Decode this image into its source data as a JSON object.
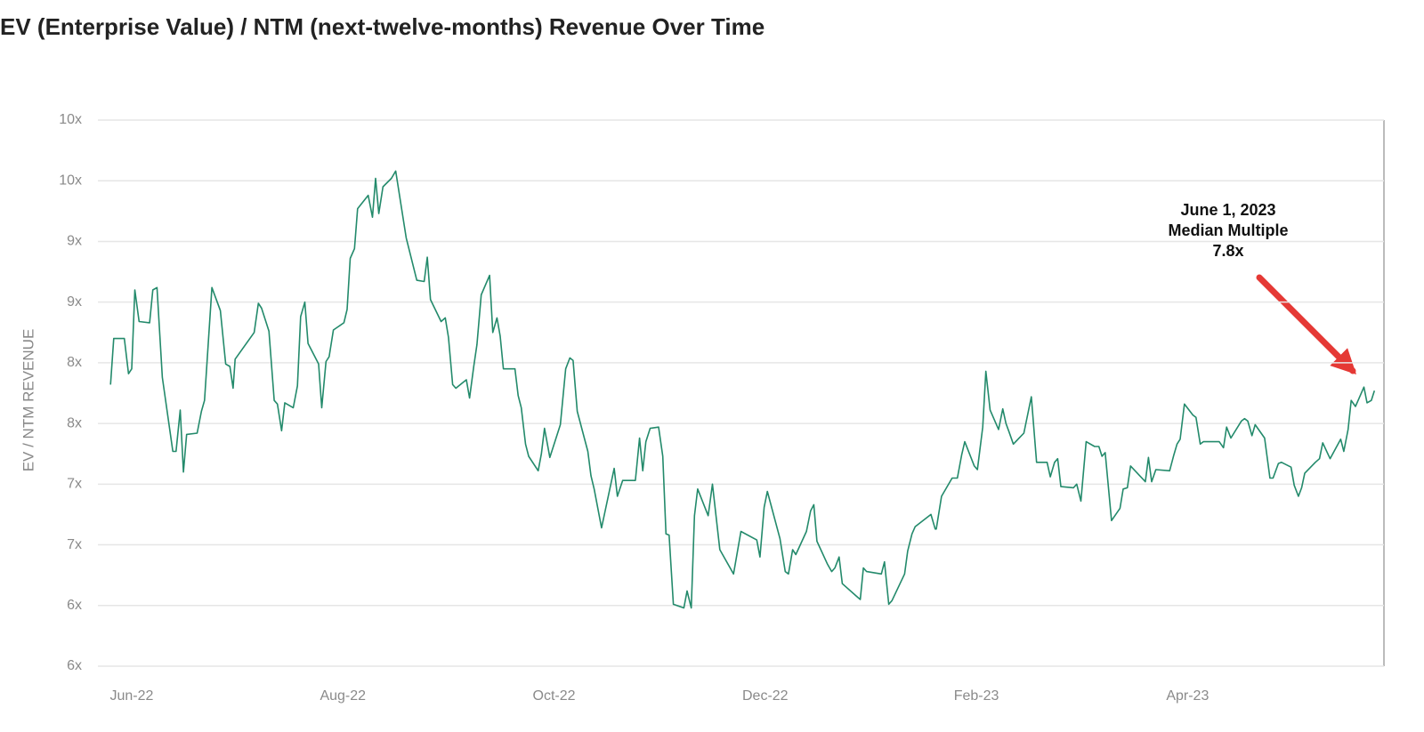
{
  "chart_data": {
    "type": "line",
    "title": "EV (Enterprise Value) / NTM (next-twelve-months) Revenue Over Time",
    "y_label": "EV / NTM REVENUE",
    "annotation": [
      "June 1, 2023",
      "Median Multiple",
      "7.8x"
    ],
    "color": "#238a6b",
    "grid": true,
    "xlim": [
      5.68,
      17.86
    ],
    "xticks": [
      {
        "value": 6,
        "label": "Jun-22"
      },
      {
        "value": 8,
        "label": "Aug-22"
      },
      {
        "value": 10,
        "label": "Oct-22"
      },
      {
        "value": 12,
        "label": "Dec-22"
      },
      {
        "value": 14,
        "label": "Feb-23"
      },
      {
        "value": 16,
        "label": "Apr-23"
      }
    ],
    "ylim": [
      5.5,
      10
    ],
    "yticks": [
      {
        "value": 5.5,
        "label": "6x"
      },
      {
        "value": 6,
        "label": "6x"
      },
      {
        "value": 6.5,
        "label": "7x"
      },
      {
        "value": 7,
        "label": "7x"
      },
      {
        "value": 7.5,
        "label": "8x"
      },
      {
        "value": 8,
        "label": "8x"
      },
      {
        "value": 8.5,
        "label": "9x"
      },
      {
        "value": 9,
        "label": "9x"
      },
      {
        "value": 9.5,
        "label": "10x"
      },
      {
        "value": 10,
        "label": "10x"
      }
    ],
    "x": [
      5.8,
      5.83,
      5.93,
      5.97,
      6.0,
      6.03,
      6.07,
      6.17,
      6.2,
      6.24,
      6.29,
      6.39,
      6.42,
      6.46,
      6.49,
      6.52,
      6.62,
      6.66,
      6.69,
      6.76,
      6.84,
      6.89,
      6.93,
      6.96,
      6.98,
      7.16,
      7.2,
      7.23,
      7.3,
      7.35,
      7.38,
      7.42,
      7.45,
      7.53,
      7.57,
      7.6,
      7.64,
      7.67,
      7.77,
      7.8,
      7.84,
      7.87,
      7.91,
      8.01,
      8.04,
      8.07,
      8.11,
      8.14,
      8.24,
      8.28,
      8.31,
      8.34,
      8.38,
      8.46,
      8.5,
      8.6,
      8.7,
      8.77,
      8.8,
      8.83,
      8.93,
      8.97,
      9.0,
      9.04,
      9.07,
      9.14,
      9.17,
      9.2,
      9.24,
      9.27,
      9.31,
      9.39,
      9.42,
      9.46,
      9.49,
      9.52,
      9.63,
      9.66,
      9.69,
      9.73,
      9.76,
      9.85,
      9.88,
      9.91,
      9.96,
      10.06,
      10.11,
      10.15,
      10.18,
      10.22,
      10.32,
      10.35,
      10.38,
      10.45,
      10.57,
      10.6,
      10.65,
      10.77,
      10.81,
      10.84,
      10.87,
      10.91,
      10.99,
      11.03,
      11.06,
      11.09,
      11.13,
      11.23,
      11.26,
      11.3,
      11.33,
      11.36,
      11.46,
      11.5,
      11.57,
      11.7,
      11.77,
      11.92,
      11.95,
      11.99,
      12.02,
      12.14,
      12.19,
      12.22,
      12.26,
      12.29,
      12.39,
      12.43,
      12.46,
      12.49,
      12.59,
      12.63,
      12.66,
      12.7,
      12.73,
      12.86,
      12.9,
      12.93,
      12.96,
      13.1,
      13.13,
      13.17,
      13.2,
      13.32,
      13.35,
      13.39,
      13.42,
      13.57,
      13.61,
      13.62,
      13.67,
      13.77,
      13.82,
      13.86,
      13.89,
      13.98,
      14.01,
      14.06,
      14.09,
      14.13,
      14.21,
      14.25,
      14.28,
      14.31,
      14.35,
      14.45,
      14.52,
      14.57,
      14.67,
      14.7,
      14.74,
      14.77,
      14.8,
      14.92,
      14.95,
      14.99,
      15.02,
      15.04,
      15.12,
      15.16,
      15.19,
      15.22,
      15.28,
      15.36,
      15.39,
      15.43,
      15.46,
      15.6,
      15.63,
      15.66,
      15.7,
      15.83,
      15.87,
      15.9,
      15.93,
      15.97,
      16.05,
      16.08,
      16.12,
      16.15,
      16.3,
      16.34,
      16.37,
      16.41,
      16.51,
      16.54,
      16.57,
      16.61,
      16.64,
      16.73,
      16.78,
      16.81,
      16.86,
      16.89,
      16.98,
      17.01,
      17.05,
      17.08,
      17.11,
      17.21,
      17.25,
      17.28,
      17.35,
      17.45,
      17.48,
      17.52,
      17.55,
      17.59,
      17.67,
      17.7,
      17.74,
      17.77
    ],
    "values": [
      7.82,
      8.2,
      8.2,
      7.91,
      7.95,
      8.6,
      8.34,
      8.33,
      8.6,
      8.62,
      7.88,
      7.27,
      7.27,
      7.61,
      7.1,
      7.41,
      7.42,
      7.6,
      7.69,
      8.62,
      8.43,
      7.99,
      7.97,
      7.79,
      8.03,
      8.25,
      8.49,
      8.45,
      8.26,
      7.69,
      7.66,
      7.44,
      7.67,
      7.63,
      7.81,
      8.38,
      8.5,
      8.16,
      7.99,
      7.63,
      8.01,
      8.05,
      8.27,
      8.33,
      8.44,
      8.86,
      8.94,
      9.27,
      9.38,
      9.2,
      9.52,
      9.23,
      9.45,
      9.52,
      9.58,
      9.03,
      8.68,
      8.67,
      8.87,
      8.52,
      8.34,
      8.37,
      8.21,
      7.82,
      7.79,
      7.84,
      7.86,
      7.71,
      7.97,
      8.15,
      8.56,
      8.72,
      8.25,
      8.37,
      8.22,
      7.95,
      7.95,
      7.73,
      7.63,
      7.33,
      7.23,
      7.11,
      7.25,
      7.46,
      7.22,
      7.49,
      7.95,
      8.04,
      8.02,
      7.6,
      7.27,
      7.07,
      6.96,
      6.64,
      7.13,
      6.9,
      7.03,
      7.03,
      7.38,
      7.11,
      7.35,
      7.46,
      7.47,
      7.23,
      6.59,
      6.58,
      6.01,
      5.98,
      6.12,
      5.98,
      6.74,
      6.96,
      6.74,
      7.0,
      6.46,
      6.26,
      6.61,
      6.54,
      6.4,
      6.81,
      6.94,
      6.55,
      6.28,
      6.26,
      6.46,
      6.42,
      6.61,
      6.78,
      6.83,
      6.53,
      6.34,
      6.28,
      6.31,
      6.4,
      6.18,
      6.08,
      6.05,
      6.31,
      6.28,
      6.26,
      6.36,
      6.01,
      6.04,
      6.26,
      6.45,
      6.59,
      6.65,
      6.75,
      6.63,
      6.63,
      6.9,
      7.05,
      7.05,
      7.24,
      7.35,
      7.15,
      7.12,
      7.47,
      7.93,
      7.61,
      7.45,
      7.62,
      7.5,
      7.43,
      7.33,
      7.42,
      7.72,
      7.18,
      7.18,
      7.06,
      7.18,
      7.21,
      6.98,
      6.97,
      7.0,
      6.86,
      7.16,
      7.35,
      7.31,
      7.31,
      7.23,
      7.26,
      6.7,
      6.8,
      6.96,
      6.97,
      7.15,
      7.02,
      7.22,
      7.02,
      7.12,
      7.11,
      7.24,
      7.33,
      7.37,
      7.66,
      7.57,
      7.55,
      7.33,
      7.35,
      7.35,
      7.3,
      7.47,
      7.38,
      7.52,
      7.54,
      7.52,
      7.4,
      7.49,
      7.38,
      7.05,
      7.05,
      7.17,
      7.18,
      7.14,
      6.99,
      6.9,
      6.97,
      7.09,
      7.18,
      7.21,
      7.34,
      7.21,
      7.37,
      7.27,
      7.45,
      7.69,
      7.64,
      7.8,
      7.67,
      7.69,
      7.77
    ]
  }
}
